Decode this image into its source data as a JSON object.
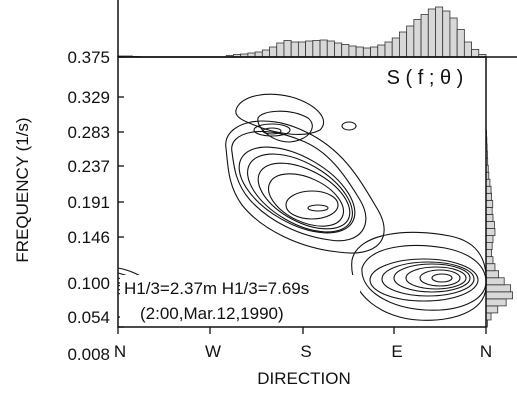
{
  "chart_data": {
    "type": "contour",
    "title": "S ( f ; θ )",
    "xlabel": "DIRECTION",
    "ylabel": "FREQUENCY (1/s)",
    "x_ticks": [
      "N",
      "W",
      "S",
      "E",
      "N"
    ],
    "y_ticks": [
      "0.375",
      "0.329",
      "0.283",
      "0.237",
      "0.191",
      "0.146",
      "0.100",
      "0.054",
      "0.008"
    ],
    "annotations": {
      "line1": "H1/3=2.37m H1/3=7.69s",
      "line2": "(2:00,Mar.12,1990)"
    },
    "ylim": [
      0.008,
      0.375
    ],
    "marginal_direction_values": [
      0.02,
      0.02,
      0.01,
      0,
      0,
      0,
      0,
      0,
      0,
      0,
      0,
      0,
      0,
      0,
      0,
      0.03,
      0.05,
      0.06,
      0.08,
      0.1,
      0.14,
      0.2,
      0.28,
      0.33,
      0.3,
      0.3,
      0.32,
      0.33,
      0.34,
      0.32,
      0.28,
      0.25,
      0.22,
      0.2,
      0.18,
      0.2,
      0.24,
      0.3,
      0.38,
      0.5,
      0.62,
      0.75,
      0.85,
      0.96,
      1.0,
      0.92,
      0.78,
      0.55,
      0.3,
      0.15,
      0.05
    ],
    "marginal_frequency_values": [
      0.05,
      0.18,
      0.42,
      0.72,
      0.95,
      0.88,
      0.65,
      0.45,
      0.32,
      0.25,
      0.2,
      0.22,
      0.25,
      0.32,
      0.3,
      0.25,
      0.22,
      0.24,
      0.2,
      0.18,
      0.14,
      0.1,
      0.08,
      0.06,
      0.05,
      0.04,
      0.03,
      0.02
    ]
  }
}
